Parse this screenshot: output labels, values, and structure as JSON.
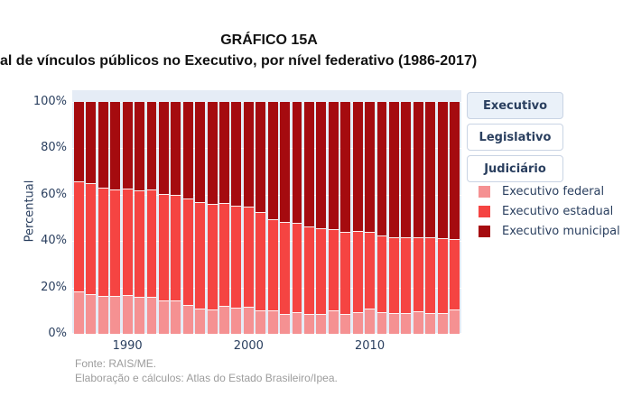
{
  "title": "GRÁFICO 15A",
  "subtitle": "al de vínculos públicos no Executivo, por nível federativo (1986-2017)",
  "y_axis": {
    "title": "Percentual",
    "ticks": [
      "0%",
      "20%",
      "40%",
      "60%",
      "80%",
      "100%"
    ]
  },
  "x_axis": {
    "ticks": [
      "1990",
      "2000",
      "2010"
    ]
  },
  "buttons": [
    {
      "label": "Executivo",
      "active": true
    },
    {
      "label": "Legislativo",
      "active": false
    },
    {
      "label": "Judiciário",
      "active": false
    }
  ],
  "legend": [
    {
      "label": "Executivo federal",
      "color": "#F59192"
    },
    {
      "label": "Executivo estadual",
      "color": "#F54442"
    },
    {
      "label": "Executivo municipal",
      "color": "#A50B0F"
    }
  ],
  "footer": {
    "line1": "Fonte: RAIS/ME.",
    "line2": "Elaboração e cálculos: Atlas do Estado Brasileiro/Ipea."
  },
  "colors": {
    "plot_background": "#E5ECF6",
    "axis_text": "#2A3F5F",
    "active_button_bg": "#EAF1F9",
    "button_border": "#C9D4E4",
    "footer_text": "#9C9C9C"
  },
  "chart_data": {
    "type": "bar",
    "stacked": true,
    "title": "GRÁFICO 15A",
    "ylabel": "Percentual",
    "ylim": [
      0,
      100
    ],
    "grid": true,
    "legend_position": "right",
    "x": [
      1986,
      1987,
      1988,
      1989,
      1990,
      1991,
      1992,
      1993,
      1994,
      1995,
      1996,
      1997,
      1998,
      1999,
      2000,
      2001,
      2002,
      2003,
      2004,
      2005,
      2006,
      2007,
      2008,
      2009,
      2010,
      2011,
      2012,
      2013,
      2014,
      2015,
      2016,
      2017
    ],
    "series": [
      {
        "name": "Executivo federal",
        "color": "#F59192",
        "values": [
          17.8,
          16.8,
          16.1,
          15.8,
          16.3,
          15.5,
          15.4,
          14.0,
          13.9,
          12.2,
          10.6,
          10.1,
          11.7,
          10.7,
          11.1,
          9.9,
          9.9,
          8.3,
          8.9,
          8.0,
          8.0,
          9.6,
          8.0,
          8.9,
          10.5,
          9.0,
          8.5,
          8.5,
          9.5,
          8.5,
          8.5,
          10.0
        ]
      },
      {
        "name": "Executivo estadual",
        "color": "#F54442",
        "values": [
          47.6,
          47.7,
          46.7,
          46.0,
          46.0,
          46.0,
          46.4,
          46.0,
          45.8,
          45.9,
          45.7,
          45.5,
          44.4,
          44.3,
          43.3,
          42.2,
          39.3,
          39.6,
          38.6,
          37.9,
          37.3,
          35.3,
          35.6,
          35.1,
          33.1,
          33.0,
          32.9,
          32.8,
          31.8,
          32.7,
          32.5,
          30.5
        ]
      },
      {
        "name": "Executivo municipal",
        "color": "#A50B0F",
        "values": [
          34.6,
          35.5,
          37.2,
          38.2,
          37.7,
          38.5,
          38.2,
          40.0,
          40.3,
          41.9,
          43.7,
          44.4,
          43.9,
          45.0,
          45.6,
          47.9,
          50.8,
          52.1,
          52.5,
          54.1,
          54.7,
          55.1,
          56.4,
          56.0,
          56.4,
          58.0,
          58.6,
          58.7,
          58.7,
          58.8,
          59.0,
          59.5
        ]
      }
    ]
  }
}
